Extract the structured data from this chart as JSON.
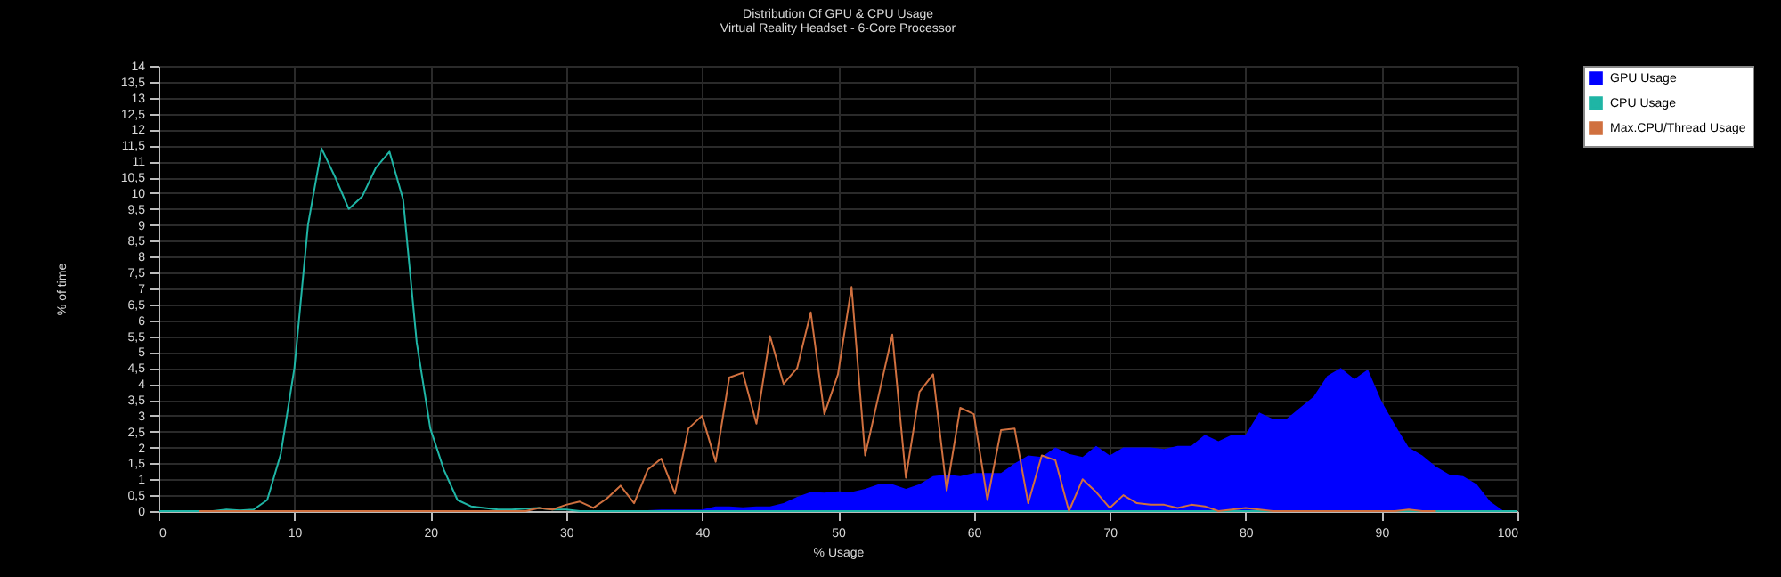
{
  "chart_data": {
    "type": "area",
    "title": "Distribution Of GPU & CPU Usage",
    "subtitle": "Virtual Reality Headset - 6-Core Processor",
    "xlabel": "% Usage",
    "ylabel": "% of time",
    "x": [
      0,
      1,
      2,
      3,
      4,
      5,
      6,
      7,
      8,
      9,
      10,
      11,
      12,
      13,
      14,
      15,
      16,
      17,
      18,
      19,
      20,
      21,
      22,
      23,
      24,
      25,
      26,
      27,
      28,
      29,
      30,
      31,
      32,
      33,
      34,
      35,
      36,
      37,
      38,
      39,
      40,
      41,
      42,
      43,
      44,
      45,
      46,
      47,
      48,
      49,
      50,
      51,
      52,
      53,
      54,
      55,
      56,
      57,
      58,
      59,
      60,
      61,
      62,
      63,
      64,
      65,
      66,
      67,
      68,
      69,
      70,
      71,
      72,
      73,
      74,
      75,
      76,
      77,
      78,
      79,
      80,
      81,
      82,
      83,
      84,
      85,
      86,
      87,
      88,
      89,
      90,
      91,
      92,
      93,
      94,
      95,
      96,
      97,
      98,
      99,
      100
    ],
    "series": [
      {
        "name": "GPU Usage",
        "color": "#0000ff",
        "values": [
          0,
          0,
          0,
          0,
          0,
          0,
          0,
          0,
          0,
          0,
          0,
          0,
          0,
          0,
          0,
          0,
          0,
          0,
          0,
          0,
          0,
          0,
          0,
          0,
          0,
          0,
          0,
          0,
          0,
          0,
          0,
          0,
          0,
          0,
          0,
          0,
          0.03,
          0.05,
          0.05,
          0.05,
          0.05,
          0.15,
          0.15,
          0.12,
          0.15,
          0.15,
          0.25,
          0.45,
          0.6,
          0.58,
          0.62,
          0.6,
          0.7,
          0.85,
          0.85,
          0.7,
          0.85,
          1.1,
          1.15,
          1.1,
          1.2,
          1.2,
          1.2,
          1.5,
          1.75,
          1.7,
          2.0,
          1.8,
          1.7,
          2.05,
          1.75,
          2.0,
          2.0,
          2.0,
          1.95,
          2.05,
          2.05,
          2.4,
          2.2,
          2.4,
          2.4,
          3.1,
          2.9,
          2.9,
          3.25,
          3.6,
          4.25,
          4.5,
          4.15,
          4.45,
          3.45,
          2.7,
          2.0,
          1.75,
          1.4,
          1.15,
          1.1,
          0.85,
          0.3,
          0,
          0
        ]
      },
      {
        "name": "CPU Usage",
        "type": "line",
        "color": "#1fb5a5",
        "values": [
          0,
          0,
          0,
          0,
          0,
          0.05,
          0.02,
          0.05,
          0.35,
          1.8,
          4.5,
          9,
          11.4,
          10.5,
          9.5,
          9.9,
          10.8,
          11.3,
          9.8,
          5.3,
          2.6,
          1.3,
          0.35,
          0.15,
          0.1,
          0.05,
          0.05,
          0.08,
          0.1,
          0.05,
          0.05,
          0,
          0,
          0,
          0,
          0,
          0,
          0,
          0,
          0,
          0,
          0,
          0,
          0,
          0,
          0,
          0,
          0,
          0,
          0,
          0,
          0,
          0,
          0,
          0,
          0,
          0,
          0,
          0,
          0,
          0,
          0,
          0,
          0,
          0,
          0,
          0,
          0,
          0,
          0,
          0,
          0,
          0,
          0,
          0,
          0,
          0,
          0,
          0,
          0,
          0,
          0,
          0,
          0,
          0,
          0,
          0,
          0,
          0,
          0,
          0,
          0,
          0,
          0,
          0,
          0,
          0,
          0,
          0,
          0,
          0
        ]
      },
      {
        "name": "Max.CPU/Thread Usage",
        "type": "line",
        "color": "#d0703f",
        "values": [
          null,
          null,
          null,
          0,
          0,
          0,
          0,
          0,
          0,
          0,
          0,
          0,
          0,
          0,
          0,
          0,
          0,
          0,
          0,
          0,
          0,
          0,
          0,
          0,
          0,
          0,
          0,
          0,
          0.1,
          0.05,
          0.2,
          0.3,
          0.1,
          0.4,
          0.8,
          0.25,
          1.3,
          1.65,
          0.55,
          2.6,
          3.0,
          1.55,
          4.2,
          4.35,
          2.75,
          5.5,
          4.0,
          4.5,
          6.25,
          3.05,
          4.3,
          7.05,
          1.75,
          3.65,
          5.55,
          1.05,
          3.75,
          4.3,
          0.65,
          3.25,
          3.05,
          0.35,
          2.55,
          2.6,
          0.25,
          1.75,
          1.6,
          0,
          1.0,
          0.6,
          0.1,
          0.5,
          0.25,
          0.2,
          0.2,
          0.1,
          0.2,
          0.15,
          0,
          0.05,
          0.1,
          0.05,
          0,
          0,
          0,
          0,
          0,
          0,
          0,
          0,
          0,
          0,
          0.05,
          0,
          0,
          null,
          null,
          null,
          null,
          null,
          null
        ]
      }
    ],
    "xlim": [
      0,
      100
    ],
    "xticks": [
      0,
      10,
      20,
      30,
      40,
      50,
      60,
      70,
      80,
      90,
      100
    ],
    "ylim": [
      0,
      14
    ],
    "yticks": [
      0,
      {
        "value": 0.5,
        "label": "0,5"
      },
      1,
      {
        "value": 1.5,
        "label": "1,5"
      },
      2,
      {
        "value": 2.5,
        "label": "2,5"
      },
      3,
      {
        "value": 3.5,
        "label": "3,5"
      },
      4,
      {
        "value": 4.5,
        "label": "4,5"
      },
      5,
      {
        "value": 5.5,
        "label": "5,5"
      },
      6,
      {
        "value": 6.5,
        "label": "6,5"
      },
      7,
      {
        "value": 7.5,
        "label": "7,5"
      },
      8,
      {
        "value": 8.5,
        "label": "8,5"
      },
      9,
      {
        "value": 9.5,
        "label": "9,5"
      },
      10,
      {
        "value": 10.5,
        "label": "10,5"
      },
      11,
      {
        "value": 11.5,
        "label": "11,5"
      },
      12,
      {
        "value": 12.5,
        "label": "12,5"
      },
      13,
      {
        "value": 13.5,
        "label": "13,5"
      },
      14
    ],
    "grid": true,
    "legend": "top right"
  }
}
